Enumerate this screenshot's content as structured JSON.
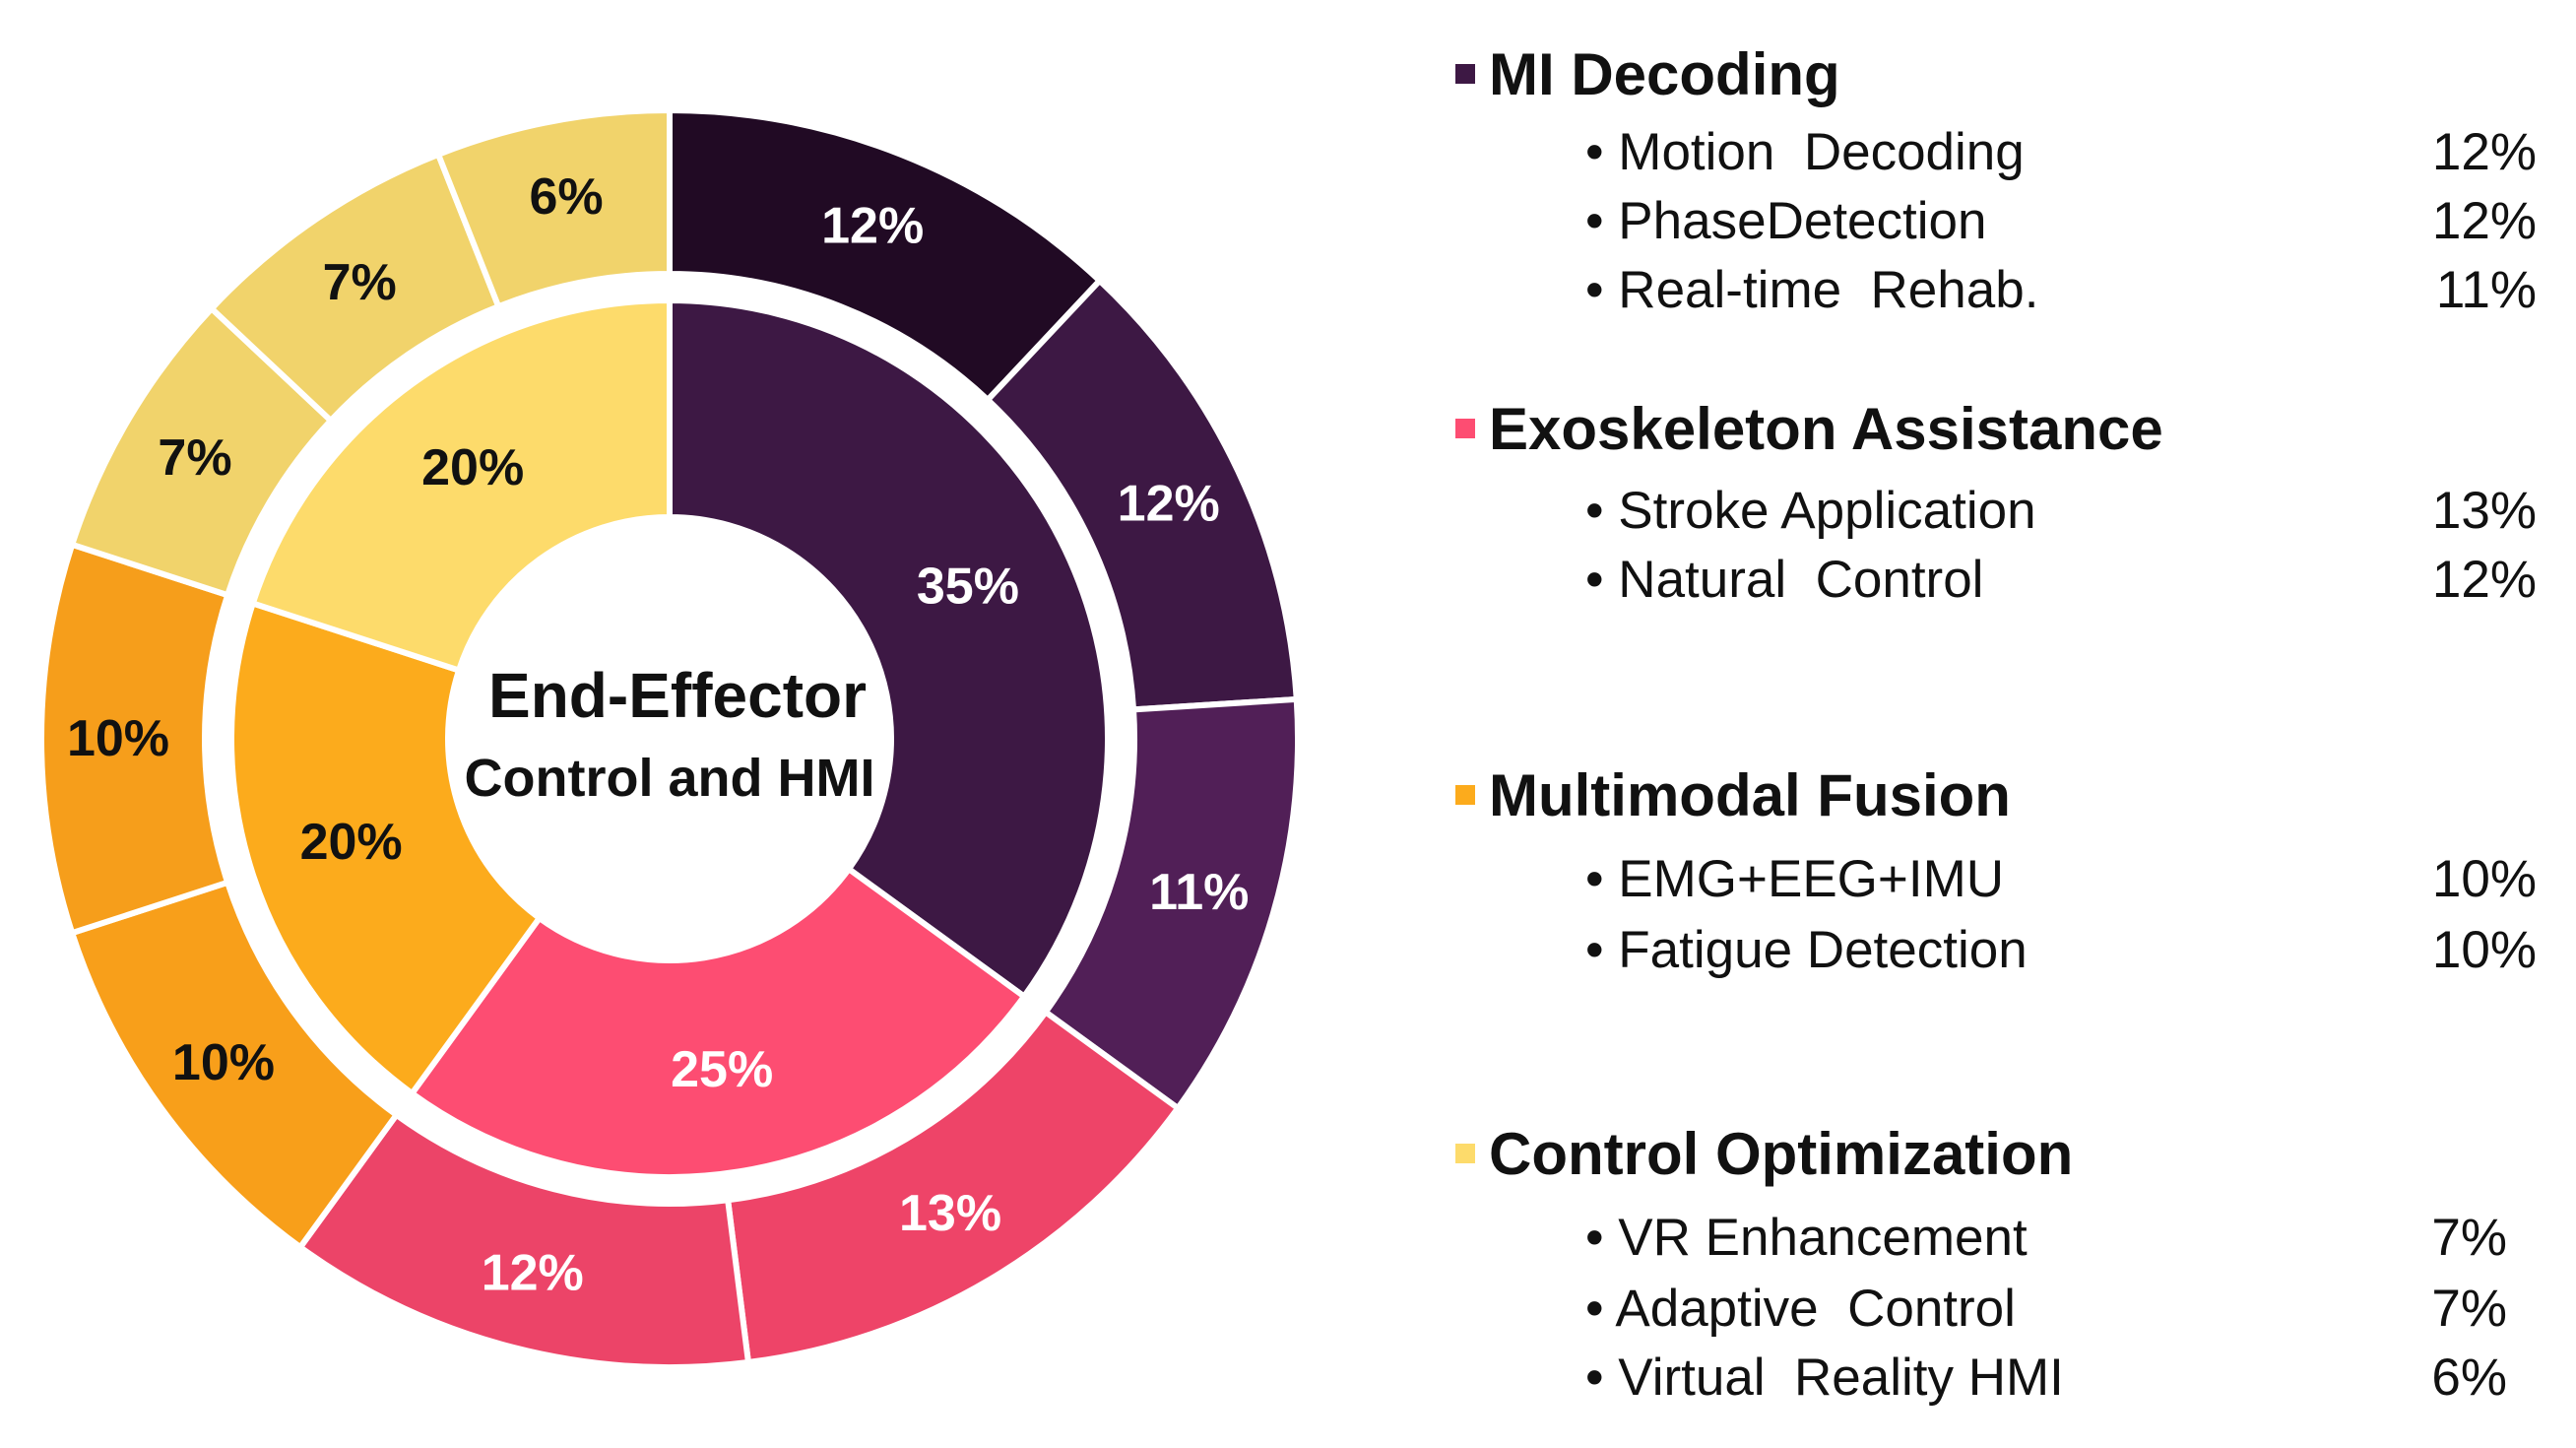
{
  "chart_data": {
    "type": "pie",
    "variant": "nested-donut",
    "center_title": "End-Effector",
    "center_subtitle": "Control and HMI",
    "inner_ring": [
      {
        "name": "MI Decoding",
        "label": "35%",
        "value": 35,
        "color": "#3d1844",
        "text_color": "#ffffff"
      },
      {
        "name": "Exoskeleton Assistance",
        "label": "25%",
        "value": 25,
        "color": "#fd4d72",
        "text_color": "#ffffff"
      },
      {
        "name": "Multimodal Fusion",
        "label": "20%",
        "value": 20,
        "color": "#fcab1c",
        "text_color": "#111111"
      },
      {
        "name": "Control Optimization",
        "label": "20%",
        "value": 20,
        "color": "#fddb6b",
        "text_color": "#111111"
      }
    ],
    "outer_ring": [
      {
        "name": "Motion Decoding",
        "label": "12%",
        "value": 12,
        "color": "#210a24",
        "text_color": "#ffffff"
      },
      {
        "name": "PhaseDetection",
        "label": "12%",
        "value": 12,
        "color": "#3d1844",
        "text_color": "#ffffff"
      },
      {
        "name": "Real-time Rehab.",
        "label": "11%",
        "value": 11,
        "color": "#511f57",
        "text_color": "#ffffff"
      },
      {
        "name": "Stroke Application",
        "label": "13%",
        "value": 13,
        "color": "#ee4468",
        "text_color": "#ffffff"
      },
      {
        "name": "Natural Control",
        "label": "12%",
        "value": 12,
        "color": "#ec4468",
        "text_color": "#ffffff"
      },
      {
        "name": "EMG+EEG+IMU",
        "label": "10%",
        "value": 10,
        "color": "#f89f1a",
        "text_color": "#111111"
      },
      {
        "name": "Fatigue Detection",
        "label": "10%",
        "value": 10,
        "color": "#f69e1b",
        "text_color": "#111111"
      },
      {
        "name": "VR Enhancement",
        "label": "7%",
        "value": 7,
        "color": "#f1d36b",
        "text_color": "#111111"
      },
      {
        "name": "Adaptive Control",
        "label": "7%",
        "value": 7,
        "color": "#f1d36b",
        "text_color": "#111111"
      },
      {
        "name": "Virtual Reality HMI",
        "label": "6%",
        "value": 6,
        "color": "#f1d36b",
        "text_color": "#111111"
      }
    ],
    "legend_position": "right",
    "legend": [
      {
        "category": "MI Decoding",
        "color": "#3d1844",
        "items": [
          {
            "bullet": "•",
            "label": "Motion  Decoding",
            "value": "12%"
          },
          {
            "bullet": "•",
            "label": "PhaseDetection",
            "value": "12%"
          },
          {
            "bullet": "•",
            "label": "Real-time  Rehab.",
            "value": "11%"
          }
        ]
      },
      {
        "category": "Exoskeleton Assistance",
        "color": "#fd4d72",
        "items": [
          {
            "bullet": "•",
            "label": "Stroke Application",
            "value": "13%"
          },
          {
            "bullet": "•",
            "label": "Natural  Control",
            "value": "12%"
          }
        ]
      },
      {
        "category": "Multimodal Fusion",
        "color": "#fcab1c",
        "items": [
          {
            "bullet": "•",
            "label": "EMG+EEG+IMU",
            "value": "10%"
          },
          {
            "bullet": "•",
            "label": "Fatigue Detection",
            "value": "10%"
          }
        ]
      },
      {
        "category": "Control Optimization",
        "color": "#fddb6b",
        "items": [
          {
            "bullet": "•",
            "label": "VR Enhancement",
            "value": "7%"
          },
          {
            "bullet": "•",
            "label": "Adaptive  Control",
            "value": "7%"
          },
          {
            "bullet": "•",
            "label": "Virtual  Reality HMI",
            "value": "6%"
          }
        ]
      }
    ]
  }
}
